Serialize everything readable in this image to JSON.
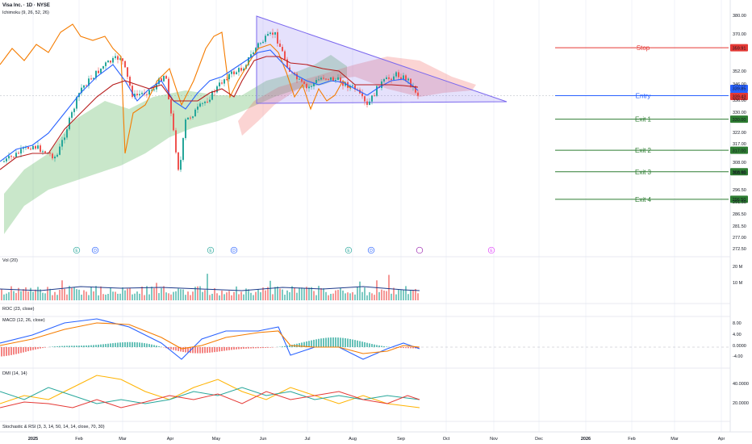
{
  "header": {
    "symbol": "Visa Inc. · 1D · NYSE",
    "indicator": "Ichimoku (9, 26, 52, 26)"
  },
  "panes": {
    "volume": "Vol (20)",
    "roc": "ROC (23, close)",
    "macd": "MACD (12, 26, close)",
    "dmi": "DMI (14, 14)",
    "stoch": "Stochastic & RSI (3, 3, 14, 50, 14, 14, close, 70, 30)"
  },
  "events": [
    "E",
    "D",
    "E",
    "D",
    "E",
    "D",
    "E"
  ],
  "chart_data": {
    "type": "candlestick",
    "x_ticks": [
      "2025",
      "Feb",
      "Mar",
      "Apr",
      "May",
      "Jun",
      "Jul",
      "Aug",
      "Sep",
      "Oct",
      "Nov",
      "Dec",
      "2026",
      "Feb",
      "Mar",
      "Apr"
    ],
    "price_ticks": [
      "380.00",
      "370.00",
      "352.00",
      "346.00",
      "336.00",
      "330.00",
      "322.00",
      "317.00",
      "308.00",
      "303.50",
      "296.50",
      "291.50",
      "286.50",
      "281.50",
      "277.00",
      "272.50"
    ],
    "volume_ticks": [
      "20 M",
      "10 M"
    ],
    "macd_ticks": [
      "8.00",
      "4.00",
      "0.0000",
      "-4.00"
    ],
    "dmi_ticks": [
      "40.0000",
      "20.0000"
    ],
    "current_prices": [
      "339.85",
      "339.43"
    ],
    "levels": [
      {
        "name": "Stop",
        "value": "359.91",
        "color": "#e53935"
      },
      {
        "name": "Entry",
        "value": "339.85",
        "color": "#2962ff"
      },
      {
        "name": "Exit 1",
        "value": "330.00",
        "color": "#2e7d32"
      },
      {
        "name": "Exit 2",
        "value": "317.00",
        "color": "#2e7d32"
      },
      {
        "name": "Exit 3",
        "value": "308.00",
        "color": "#2e7d32"
      },
      {
        "name": "Exit 4",
        "value": "296.50",
        "color": "#2e7d32"
      }
    ],
    "colors": {
      "up": "#26a69a",
      "down": "#ef5350",
      "tenkan": "#2962ff",
      "kijun": "#b71c1c",
      "chikou": "#f57c00",
      "triangle": "#7b68ee"
    }
  }
}
